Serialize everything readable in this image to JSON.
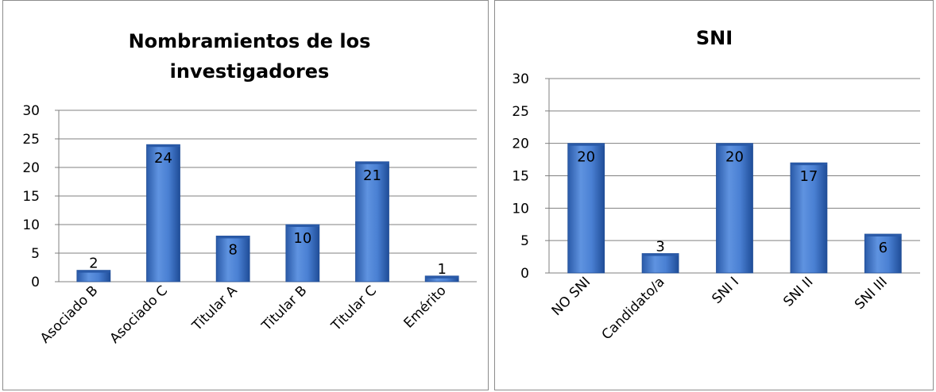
{
  "chart_data": [
    {
      "type": "bar",
      "title_lines": [
        "Nombramientos de los",
        "investigadores"
      ],
      "categories": [
        "Asociado B",
        "Asociado C",
        "Titular A",
        "Titular B",
        "Titular C",
        "Emérito"
      ],
      "values": [
        2,
        24,
        8,
        10,
        21,
        1
      ],
      "data_labels": [
        "2",
        "24",
        "8",
        "10",
        "21",
        "1"
      ],
      "yticks": [
        "0",
        "5",
        "10",
        "15",
        "20",
        "25",
        "30"
      ],
      "ylim": [
        0,
        30
      ],
      "grid": true,
      "legend": "none",
      "bar_color": "#3d72c4"
    },
    {
      "type": "bar",
      "title_lines": [
        "SNI"
      ],
      "categories": [
        "NO SNI",
        "Candidato/a",
        "SNI I",
        "SNI II",
        "SNI III"
      ],
      "values": [
        20,
        3,
        20,
        17,
        6
      ],
      "data_labels": [
        "20",
        "3",
        "20",
        "17",
        "6"
      ],
      "yticks": [
        "0",
        "5",
        "10",
        "15",
        "20",
        "25",
        "30"
      ],
      "ylim": [
        0,
        30
      ],
      "grid": true,
      "legend": "none",
      "bar_color": "#3d72c4"
    }
  ]
}
